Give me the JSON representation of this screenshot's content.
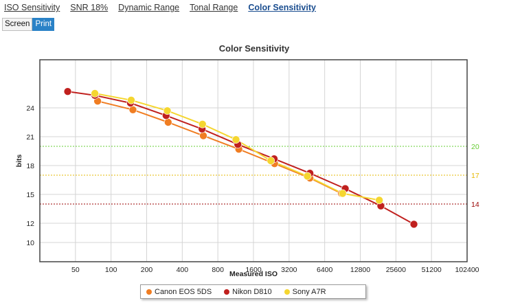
{
  "nav": {
    "tabs": [
      {
        "label": "ISO Sensitivity",
        "active": false
      },
      {
        "label": "SNR 18%",
        "active": false
      },
      {
        "label": "Dynamic Range",
        "active": false
      },
      {
        "label": "Tonal Range",
        "active": false
      },
      {
        "label": "Color Sensitivity",
        "active": true
      }
    ]
  },
  "view_toggle": {
    "screen_label": "Screen",
    "print_label": "Print",
    "selected": "Print"
  },
  "chart_data": {
    "type": "line",
    "title": "Color Sensitivity",
    "xlabel": "Measured ISO",
    "ylabel": "bits",
    "x_scale": "log2",
    "x_ticks": [
      "50",
      "100",
      "200",
      "400",
      "800",
      "1600",
      "3200",
      "6400",
      "12800",
      "25600",
      "51200",
      "102400"
    ],
    "x_tick_values": [
      50,
      100,
      200,
      400,
      800,
      1600,
      3200,
      6400,
      12800,
      25600,
      51200,
      102400
    ],
    "xlim": [
      25,
      102400
    ],
    "y_ticks": [
      10,
      12,
      15,
      18,
      21,
      24
    ],
    "ylim": [
      8,
      29
    ],
    "grid": true,
    "reference_lines": [
      {
        "value": 20,
        "label": "20",
        "color": "#66cc33"
      },
      {
        "value": 17,
        "label": "17",
        "color": "#e6b800"
      },
      {
        "value": 14,
        "label": "14",
        "color": "#990000"
      }
    ],
    "series": [
      {
        "name": "Canon EOS 5DS",
        "color": "#f07d22",
        "x": [
          77,
          153,
          304,
          603,
          1203,
          2412,
          4802,
          8863
        ],
        "y": [
          24.7,
          23.8,
          22.5,
          21.1,
          19.7,
          18.2,
          16.7,
          15.1
        ]
      },
      {
        "name": "Nikon D810",
        "color": "#c0201e",
        "x": [
          43,
          73,
          146,
          292,
          588,
          1180,
          2392,
          4800,
          9550,
          19100,
          36350
        ],
        "y": [
          25.7,
          25.3,
          24.5,
          23.2,
          21.8,
          20.2,
          18.7,
          17.2,
          15.6,
          13.8,
          11.9
        ]
      },
      {
        "name": "Sony A7R",
        "color": "#f5d630",
        "x": [
          73,
          148,
          299,
          593,
          1138,
          2242,
          4570,
          9080,
          18520
        ],
        "y": [
          25.5,
          24.8,
          23.7,
          22.3,
          20.7,
          18.5,
          16.9,
          15.1,
          14.4
        ]
      }
    ],
    "legend_position": "bottom-center"
  }
}
